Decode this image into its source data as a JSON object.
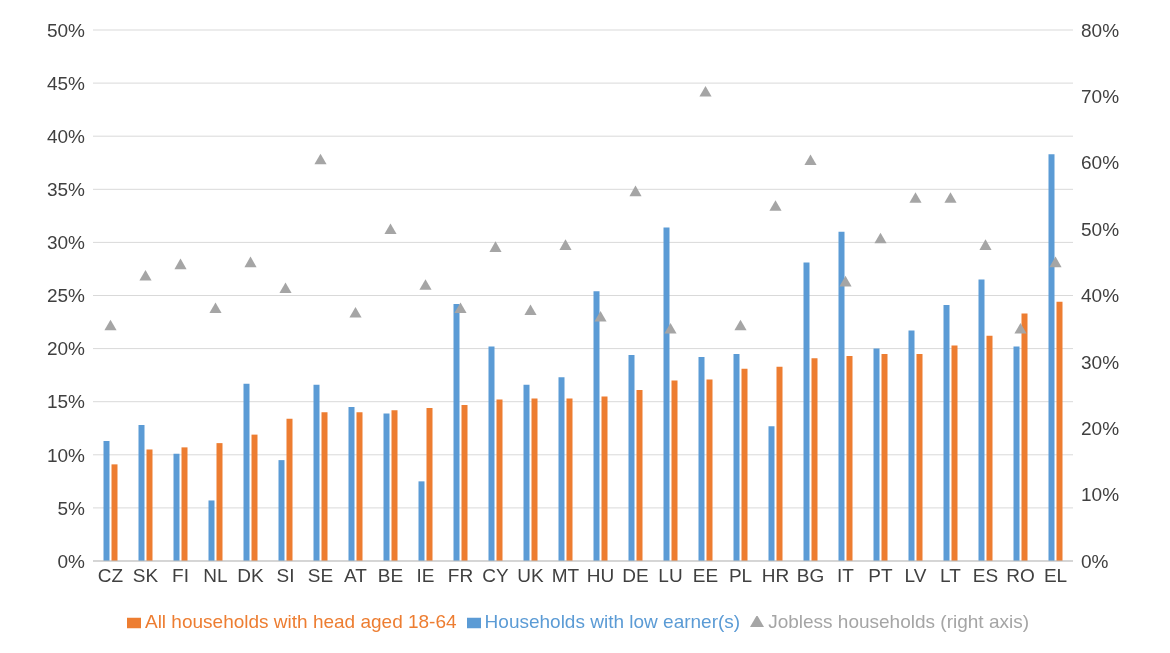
{
  "chart_data": {
    "type": "bar",
    "categories": [
      "CZ",
      "SK",
      "FI",
      "NL",
      "DK",
      "SI",
      "SE",
      "AT",
      "BE",
      "IE",
      "FR",
      "CY",
      "UK",
      "MT",
      "HU",
      "DE",
      "LU",
      "EE",
      "PL",
      "HR",
      "BG",
      "IT",
      "PT",
      "LV",
      "LT",
      "ES",
      "RO",
      "EL"
    ],
    "series": [
      {
        "name": "Households with low earner(s)",
        "color": "#5b9bd5",
        "values": [
          11.3,
          12.8,
          10.1,
          5.7,
          16.7,
          9.5,
          16.6,
          14.5,
          13.9,
          7.5,
          24.2,
          20.2,
          16.6,
          17.3,
          25.4,
          19.4,
          31.4,
          19.2,
          19.5,
          12.7,
          28.1,
          31.0,
          20.0,
          21.7,
          24.1,
          26.5,
          20.2,
          38.3
        ]
      },
      {
        "name": "All households with head aged 18-64",
        "color": "#ed7d31",
        "values": [
          9.1,
          10.5,
          10.7,
          11.1,
          11.9,
          13.4,
          14.0,
          14.0,
          14.2,
          14.4,
          14.7,
          15.2,
          15.3,
          15.3,
          15.5,
          16.1,
          17.0,
          17.1,
          18.1,
          18.3,
          19.1,
          19.3,
          19.5,
          19.5,
          20.3,
          21.2,
          23.3,
          24.4
        ]
      },
      {
        "name": "Jobless households (right axis)",
        "type": "scatter",
        "axis": "y2",
        "marker": "triangle",
        "color": "#a5a5a5",
        "values": [
          35.3,
          42.8,
          44.5,
          37.9,
          44.8,
          40.9,
          60.3,
          37.2,
          49.8,
          41.4,
          37.9,
          47.1,
          37.6,
          47.4,
          36.6,
          55.5,
          34.8,
          70.5,
          35.3,
          53.3,
          60.2,
          41.9,
          48.4,
          54.5,
          54.5,
          47.4,
          34.8,
          44.8
        ]
      }
    ],
    "ylim": [
      0,
      50
    ],
    "yticks": [
      {
        "value": 0,
        "label": "0%"
      },
      {
        "value": 5,
        "label": "5%"
      },
      {
        "value": 10,
        "label": "10%"
      },
      {
        "value": 15,
        "label": "15%"
      },
      {
        "value": 20,
        "label": "20%"
      },
      {
        "value": 25,
        "label": "25%"
      },
      {
        "value": 30,
        "label": "30%"
      },
      {
        "value": 35,
        "label": "35%"
      },
      {
        "value": 40,
        "label": "40%"
      },
      {
        "value": 45,
        "label": "45%"
      },
      {
        "value": 50,
        "label": "50%"
      }
    ],
    "y2lim": [
      0,
      80
    ],
    "y2ticks": [
      {
        "value": 0,
        "label": "0%"
      },
      {
        "value": 10,
        "label": "10%"
      },
      {
        "value": 20,
        "label": "20%"
      },
      {
        "value": 30,
        "label": "30%"
      },
      {
        "value": 40,
        "label": "40%"
      },
      {
        "value": 50,
        "label": "50%"
      },
      {
        "value": 60,
        "label": "60%"
      },
      {
        "value": 70,
        "label": "70%"
      },
      {
        "value": 80,
        "label": "80%"
      }
    ],
    "grid": "y",
    "legend": "bottom"
  }
}
